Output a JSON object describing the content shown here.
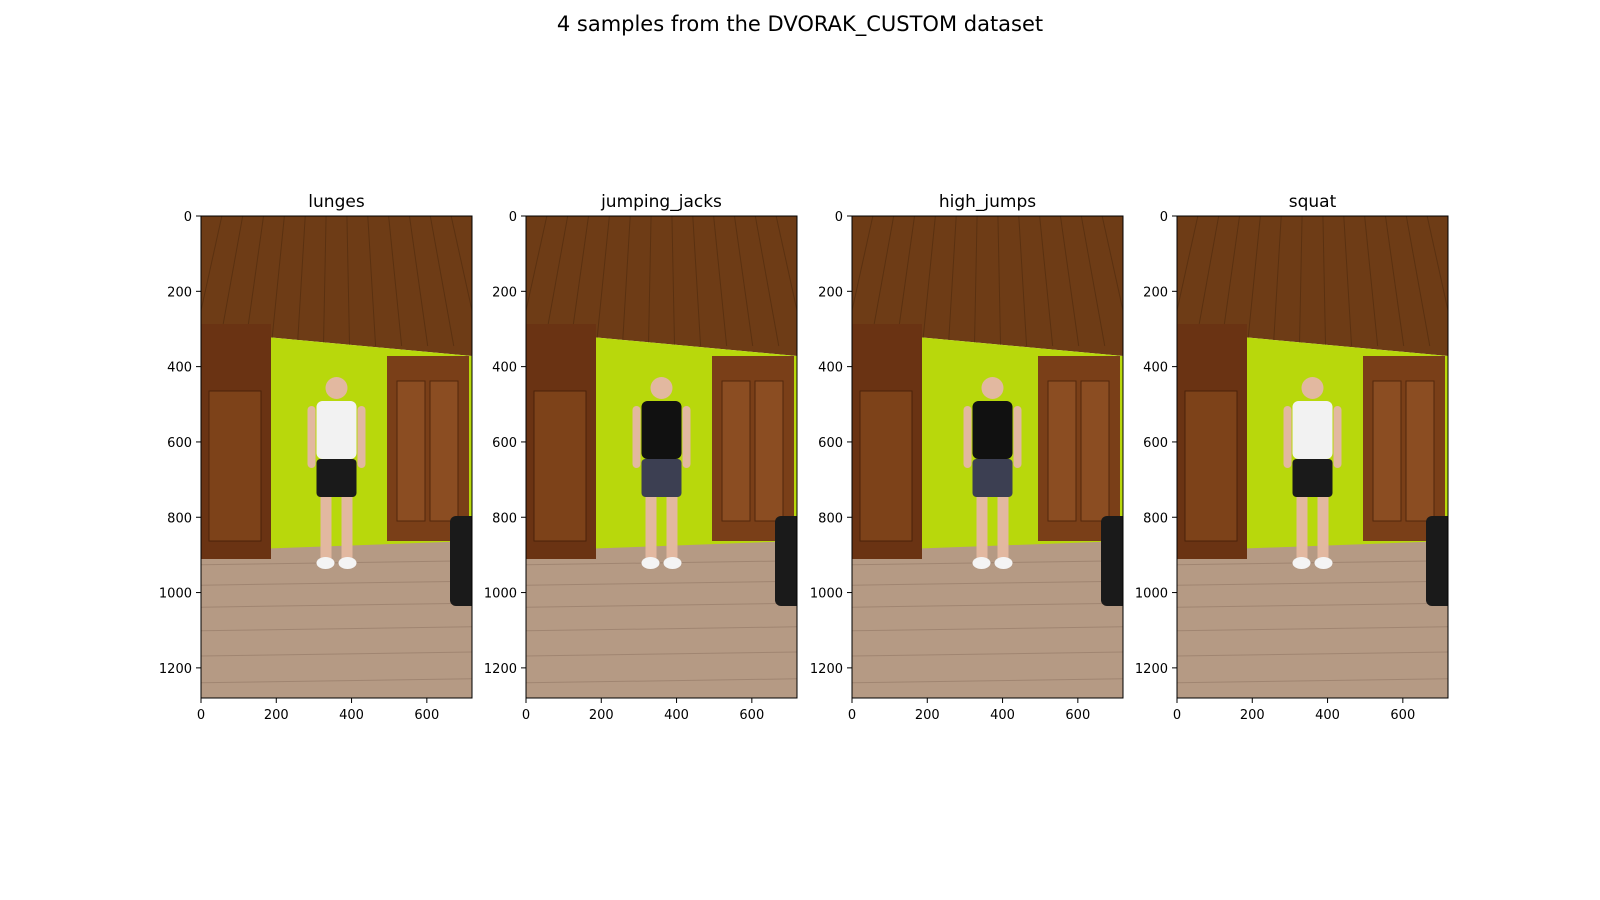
{
  "figure": {
    "title": "4 samples from the DVORAK_CUSTOM dataset"
  },
  "axes_defaults": {
    "xlim": [
      0,
      720
    ],
    "ylim": [
      1280,
      0
    ],
    "xticks": [
      0,
      200,
      400,
      600
    ],
    "yticks": [
      0,
      200,
      400,
      600,
      800,
      1000,
      1200
    ]
  },
  "panels": [
    {
      "title": "lunges",
      "subject": "man",
      "shirt_color": "#f2f2f2",
      "shorts_color": "#1a1a1a",
      "pose": "standing",
      "wall_color": "#b8d80c",
      "floor_color": "#b59a84",
      "ceiling_color": "#6e3c16",
      "door_color": "#7a3f18"
    },
    {
      "title": "jumping_jacks",
      "subject": "woman",
      "shirt_color": "#111111",
      "shorts_color": "#3c3f52",
      "pose": "standing",
      "wall_color": "#b8d80c",
      "floor_color": "#b59a84",
      "ceiling_color": "#6e3c16",
      "door_color": "#7a3f18"
    },
    {
      "title": "high_jumps",
      "subject": "woman",
      "shirt_color": "#111111",
      "shorts_color": "#3c3f52",
      "pose": "side",
      "wall_color": "#b8d80c",
      "floor_color": "#b59a84",
      "ceiling_color": "#6e3c16",
      "door_color": "#7a3f18"
    },
    {
      "title": "squat",
      "subject": "man",
      "shirt_color": "#f2f2f2",
      "shorts_color": "#1a1a1a",
      "pose": "step",
      "wall_color": "#b8d80c",
      "floor_color": "#b59a84",
      "ceiling_color": "#6e3c16",
      "door_color": "#7a3f18"
    }
  ]
}
